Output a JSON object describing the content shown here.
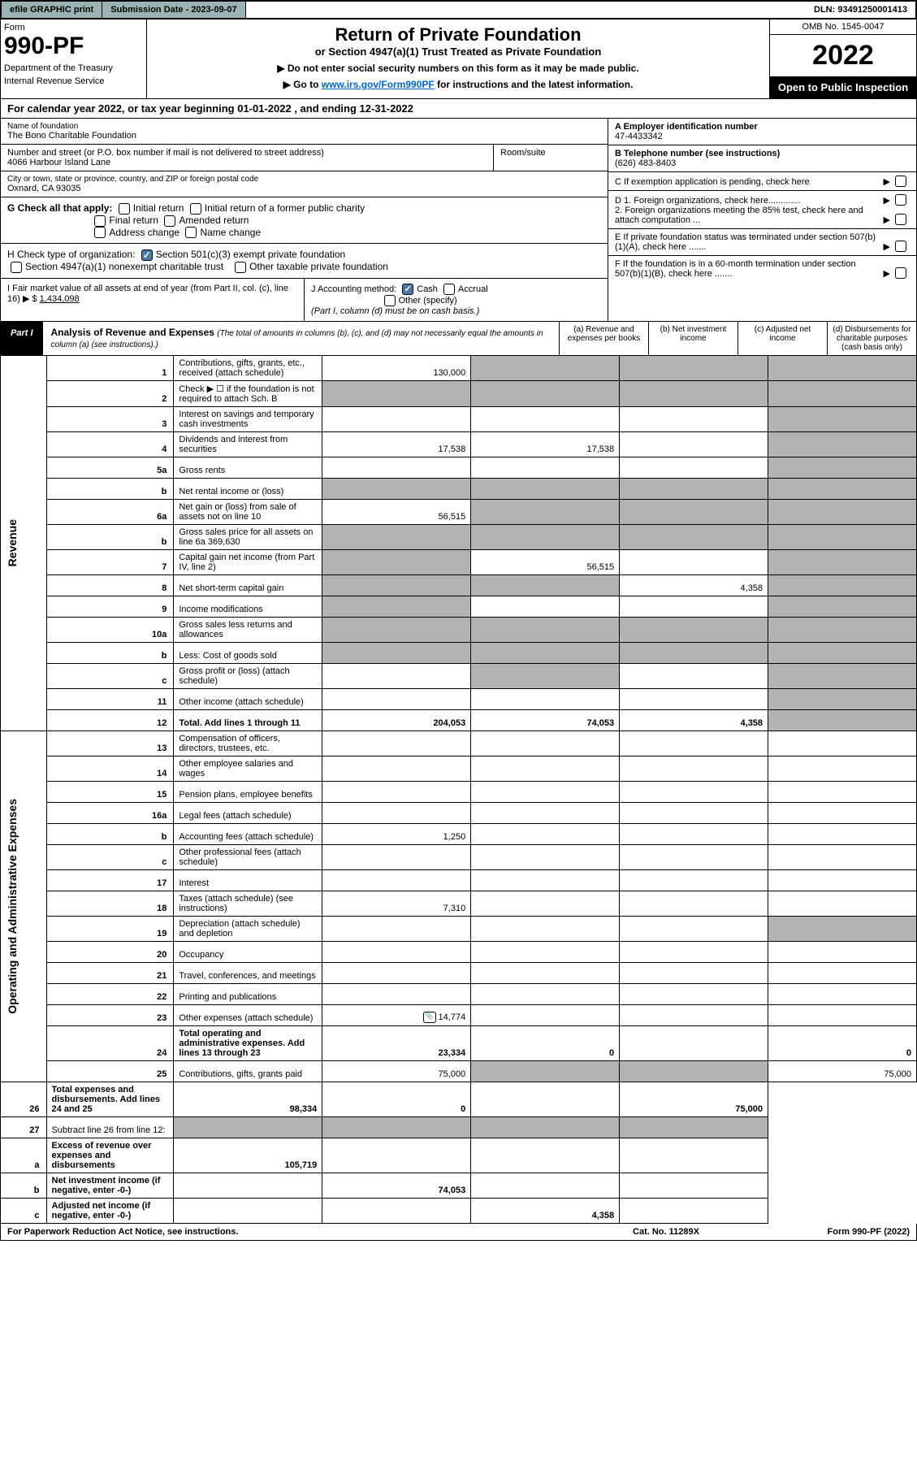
{
  "topbar": {
    "efile": "efile GRAPHIC print",
    "submission": "Submission Date - 2023-09-07",
    "dln": "DLN: 93491250001413"
  },
  "header": {
    "form_label": "Form",
    "form_number": "990-PF",
    "dept": "Department of the Treasury",
    "irs": "Internal Revenue Service",
    "title": "Return of Private Foundation",
    "subtitle": "or Section 4947(a)(1) Trust Treated as Private Foundation",
    "instr1": "▶ Do not enter social security numbers on this form as it may be made public.",
    "instr2_prefix": "▶ Go to ",
    "instr2_link": "www.irs.gov/Form990PF",
    "instr2_suffix": " for instructions and the latest information.",
    "omb": "OMB No. 1545-0047",
    "year": "2022",
    "open": "Open to Public Inspection"
  },
  "cal_year": "For calendar year 2022, or tax year beginning 01-01-2022 , and ending 12-31-2022",
  "info": {
    "name_label": "Name of foundation",
    "name": "The Bono Charitable Foundation",
    "addr_label": "Number and street (or P.O. box number if mail is not delivered to street address)",
    "addr": "4066 Harbour Island Lane",
    "room_label": "Room/suite",
    "city_label": "City or town, state or province, country, and ZIP or foreign postal code",
    "city": "Oxnard, CA  93035",
    "ein_label": "A Employer identification number",
    "ein": "47-4433342",
    "phone_label": "B Telephone number (see instructions)",
    "phone": "(626) 483-8403",
    "c_label": "C If exemption application is pending, check here",
    "d1_label": "D 1. Foreign organizations, check here.............",
    "d2_label": "2. Foreign organizations meeting the 85% test, check here and attach computation ...",
    "e_label": "E  If private foundation status was terminated under section 507(b)(1)(A), check here .......",
    "f_label": "F  If the foundation is in a 60-month termination under section 507(b)(1)(B), check here .......",
    "g_label": "G Check all that apply:",
    "g_opts": [
      "Initial return",
      "Initial return of a former public charity",
      "Final return",
      "Amended return",
      "Address change",
      "Name change"
    ],
    "h_label": "H Check type of organization:",
    "h_opts": [
      "Section 501(c)(3) exempt private foundation",
      "Section 4947(a)(1) nonexempt charitable trust",
      "Other taxable private foundation"
    ],
    "i_label": "I Fair market value of all assets at end of year (from Part II, col. (c), line 16) ▶ $",
    "i_value": "1,434,098",
    "j_label": "J Accounting method:",
    "j_opts": [
      "Cash",
      "Accrual",
      "Other (specify)"
    ],
    "j_note": "(Part I, column (d) must be on cash basis.)"
  },
  "part1": {
    "label": "Part I",
    "title": "Analysis of Revenue and Expenses",
    "title_sub": "(The total of amounts in columns (b), (c), and (d) may not necessarily equal the amounts in column (a) (see instructions).)",
    "cols": [
      "(a)   Revenue and expenses per books",
      "(b)   Net investment income",
      "(c)   Adjusted net income",
      "(d)   Disbursements for charitable purposes (cash basis only)"
    ]
  },
  "sections": {
    "revenue": "Revenue",
    "opex": "Operating and Administrative Expenses"
  },
  "rows": [
    {
      "n": "1",
      "d": "Contributions, gifts, grants, etc., received (attach schedule)",
      "a": "130,000"
    },
    {
      "n": "2",
      "d": "Check ▶ ☐ if the foundation is not required to attach Sch. B"
    },
    {
      "n": "3",
      "d": "Interest on savings and temporary cash investments"
    },
    {
      "n": "4",
      "d": "Dividends and interest from securities",
      "a": "17,538",
      "b": "17,538"
    },
    {
      "n": "5a",
      "d": "Gross rents"
    },
    {
      "n": "b",
      "d": "Net rental income or (loss)"
    },
    {
      "n": "6a",
      "d": "Net gain or (loss) from sale of assets not on line 10",
      "a": "56,515"
    },
    {
      "n": "b",
      "d": "Gross sales price for all assets on line 6a          369,630"
    },
    {
      "n": "7",
      "d": "Capital gain net income (from Part IV, line 2)",
      "b": "56,515"
    },
    {
      "n": "8",
      "d": "Net short-term capital gain",
      "c": "4,358"
    },
    {
      "n": "9",
      "d": "Income modifications"
    },
    {
      "n": "10a",
      "d": "Gross sales less returns and allowances"
    },
    {
      "n": "b",
      "d": "Less: Cost of goods sold"
    },
    {
      "n": "c",
      "d": "Gross profit or (loss) (attach schedule)"
    },
    {
      "n": "11",
      "d": "Other income (attach schedule)"
    },
    {
      "n": "12",
      "d": "Total. Add lines 1 through 11",
      "a": "204,053",
      "b": "74,053",
      "c": "4,358",
      "bold": true
    },
    {
      "n": "13",
      "d": "Compensation of officers, directors, trustees, etc."
    },
    {
      "n": "14",
      "d": "Other employee salaries and wages"
    },
    {
      "n": "15",
      "d": "Pension plans, employee benefits"
    },
    {
      "n": "16a",
      "d": "Legal fees (attach schedule)"
    },
    {
      "n": "b",
      "d": "Accounting fees (attach schedule)",
      "a": "1,250"
    },
    {
      "n": "c",
      "d": "Other professional fees (attach schedule)"
    },
    {
      "n": "17",
      "d": "Interest"
    },
    {
      "n": "18",
      "d": "Taxes (attach schedule) (see instructions)",
      "a": "7,310"
    },
    {
      "n": "19",
      "d": "Depreciation (attach schedule) and depletion"
    },
    {
      "n": "20",
      "d": "Occupancy"
    },
    {
      "n": "21",
      "d": "Travel, conferences, and meetings"
    },
    {
      "n": "22",
      "d": "Printing and publications"
    },
    {
      "n": "23",
      "d": "Other expenses (attach schedule)",
      "a": "14,774",
      "icon": true
    },
    {
      "n": "24",
      "d": "Total operating and administrative expenses. Add lines 13 through 23",
      "a": "23,334",
      "b": "0",
      "d4": "0",
      "bold": true
    },
    {
      "n": "25",
      "d": "Contributions, gifts, grants paid",
      "a": "75,000",
      "d4": "75,000"
    },
    {
      "n": "26",
      "d": "Total expenses and disbursements. Add lines 24 and 25",
      "a": "98,334",
      "b": "0",
      "d4": "75,000",
      "bold": true
    },
    {
      "n": "27",
      "d": "Subtract line 26 from line 12:"
    },
    {
      "n": "a",
      "d": "Excess of revenue over expenses and disbursements",
      "a": "105,719",
      "bold": true
    },
    {
      "n": "b",
      "d": "Net investment income (if negative, enter -0-)",
      "b": "74,053",
      "bold": true
    },
    {
      "n": "c",
      "d": "Adjusted net income (if negative, enter -0-)",
      "c": "4,358",
      "bold": true
    }
  ],
  "blocked": {
    "1": [
      "b",
      "c",
      "d"
    ],
    "2": [
      "a",
      "b",
      "c",
      "d"
    ],
    "3": [
      "d"
    ],
    "4": [
      "d"
    ],
    "5a": [
      "d"
    ],
    "5b_b": [
      "a",
      "b",
      "c",
      "d"
    ],
    "6a": [
      "b",
      "c",
      "d"
    ],
    "6b_b": [
      "a",
      "b",
      "c",
      "d"
    ],
    "7": [
      "a",
      "d"
    ],
    "8": [
      "a",
      "b",
      "d"
    ],
    "9": [
      "a",
      "d"
    ],
    "10a": [
      "a",
      "b",
      "c",
      "d"
    ],
    "10b_b": [
      "a",
      "b",
      "c",
      "d"
    ],
    "10c_c": [
      "b",
      "d"
    ],
    "11": [
      "d"
    ],
    "12": [
      "d"
    ],
    "19": [
      "d"
    ],
    "25": [
      "b",
      "c"
    ],
    "27": [
      "a",
      "b",
      "c",
      "d"
    ],
    "27a": [
      "b",
      "c",
      "d"
    ],
    "27b": [
      "a",
      "c",
      "d"
    ],
    "27c": [
      "a",
      "b",
      "d"
    ]
  },
  "footer": {
    "f1": "For Paperwork Reduction Act Notice, see instructions.",
    "f2": "Cat. No. 11289X",
    "f3": "Form 990-PF (2022)"
  }
}
